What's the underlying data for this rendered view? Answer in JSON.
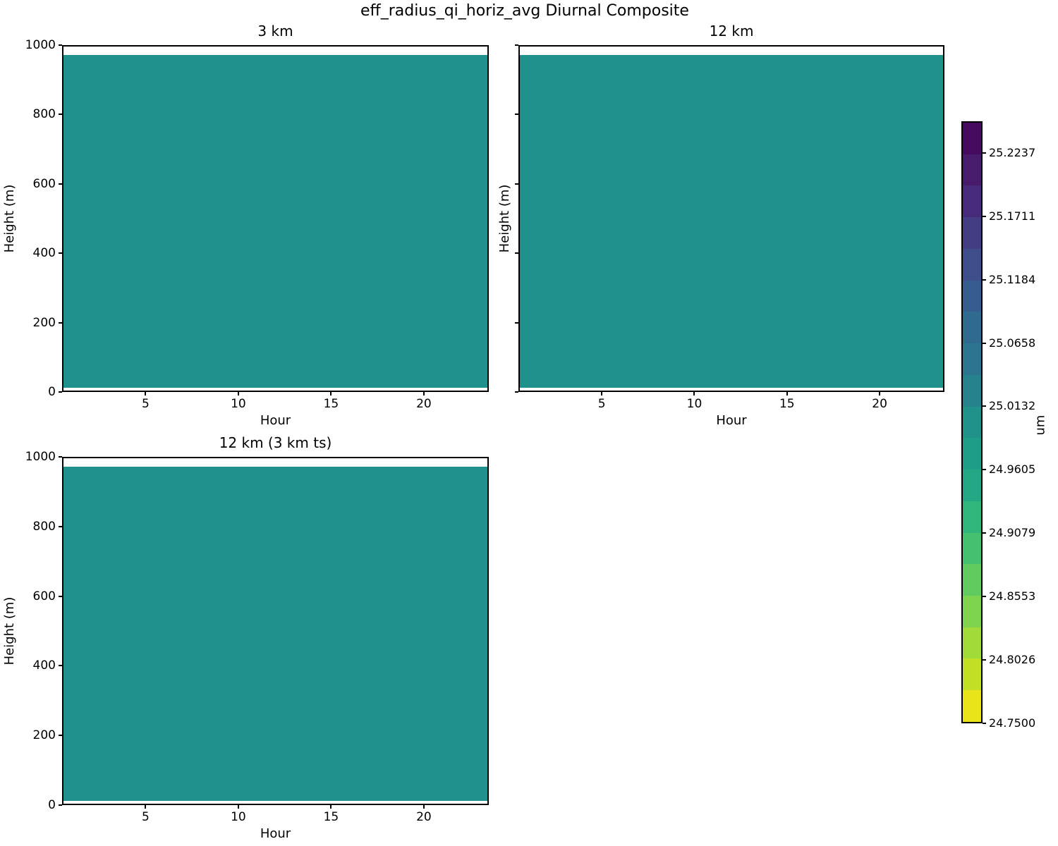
{
  "chart_data": {
    "type": "heatmap",
    "title": "eff_radius_qi_horiz_avg Diurnal Composite",
    "variable": "eff_radius_qi_horiz_avg",
    "units": "um",
    "fill_color": "#21918c",
    "subplots": [
      {
        "title": "3 km",
        "xlabel": "Hour",
        "ylabel": "Height (m)",
        "xlim": [
          0.5,
          23.5
        ],
        "ylim": [
          0,
          1000
        ],
        "xticks": [
          5,
          10,
          15,
          20
        ],
        "yticks": [
          0,
          200,
          400,
          600,
          800,
          1000
        ],
        "ytick_labels_visible": true,
        "data_extent": {
          "hour": [
            0.5,
            23.5
          ],
          "height_m": [
            8,
            975
          ]
        },
        "apparent_uniform_value_band_um": [
          24.9868,
          25.0132
        ]
      },
      {
        "title": "12 km",
        "xlabel": "Hour",
        "ylabel": "Height (m)",
        "xlim": [
          0.5,
          23.5
        ],
        "ylim": [
          0,
          1000
        ],
        "xticks": [
          5,
          10,
          15,
          20
        ],
        "yticks": [
          0,
          200,
          400,
          600,
          800,
          1000
        ],
        "ytick_labels_visible": false,
        "data_extent": {
          "hour": [
            0.5,
            23.5
          ],
          "height_m": [
            8,
            975
          ]
        },
        "apparent_uniform_value_band_um": [
          24.9868,
          25.0132
        ]
      },
      {
        "title": "12 km (3 km ts)",
        "xlabel": "Hour",
        "ylabel": "Height (m)",
        "xlim": [
          0.5,
          23.5
        ],
        "ylim": [
          0,
          1000
        ],
        "xticks": [
          5,
          10,
          15,
          20
        ],
        "yticks": [
          0,
          200,
          400,
          600,
          800,
          1000
        ],
        "ytick_labels_visible": true,
        "data_extent": {
          "hour": [
            0.5,
            23.5
          ],
          "height_m": [
            8,
            975
          ]
        },
        "apparent_uniform_value_band_um": [
          24.9868,
          25.0132
        ]
      }
    ],
    "colorbar": {
      "label": "um",
      "vmin": 24.75,
      "vmax": 25.25,
      "tick_labels": [
        "25.2237",
        "25.1711",
        "25.1184",
        "25.0658",
        "25.0132",
        "24.9605",
        "24.9079",
        "24.8553",
        "24.8026",
        "24.7500"
      ],
      "segments_top_to_bottom": [
        "#460b5e",
        "#481b6d",
        "#472a7a",
        "#433d84",
        "#3d4e8a",
        "#365d8d",
        "#306a8e",
        "#2b768e",
        "#26838e",
        "#21918c",
        "#1e9d89",
        "#22a884",
        "#30b57b",
        "#45c06f",
        "#61ca60",
        "#7fd34e",
        "#a1db39",
        "#c3df25",
        "#e8e419"
      ]
    }
  }
}
